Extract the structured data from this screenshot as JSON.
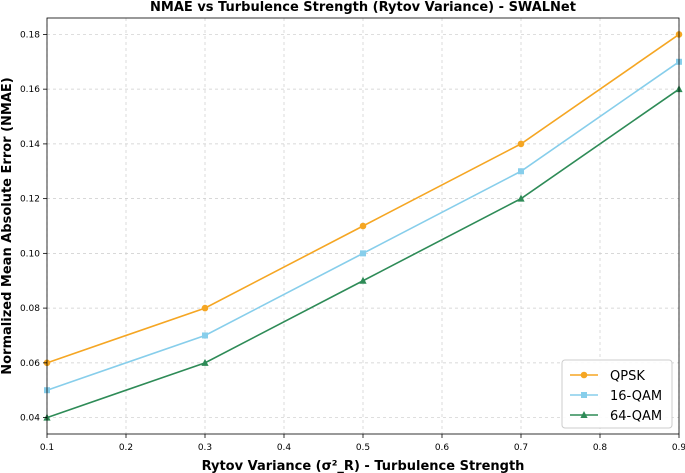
{
  "chart_data": {
    "type": "line",
    "title": "NMAE vs Turbulence Strength (Rytov Variance) - SWALNet",
    "xlabel": "Rytov Variance (σ²_R) - Turbulence Strength",
    "ylabel": "Normalized Mean Absolute Error (NMAE)",
    "xlim": [
      0.1,
      0.9
    ],
    "ylim": [
      0.034,
      0.186
    ],
    "xticks": [
      0.1,
      0.2,
      0.3,
      0.4,
      0.5,
      0.6,
      0.7,
      0.8,
      0.9
    ],
    "xtick_labels": [
      "0.1",
      "0.2",
      "0.3",
      "0.4",
      "0.5",
      "0.6",
      "0.7",
      "0.8",
      "0.9"
    ],
    "yticks": [
      0.04,
      0.06,
      0.08,
      0.1,
      0.12,
      0.14,
      0.16,
      0.18
    ],
    "ytick_labels": [
      "0.04",
      "0.06",
      "0.08",
      "0.10",
      "0.12",
      "0.14",
      "0.16",
      "0.18"
    ],
    "grid": true,
    "legend_position": "bottom-right",
    "x": [
      0.1,
      0.3,
      0.5,
      0.7,
      0.9
    ],
    "series": [
      {
        "name": "QPSK",
        "color": "#f5a623",
        "marker": "circle",
        "values": [
          0.06,
          0.08,
          0.11,
          0.14,
          0.18
        ]
      },
      {
        "name": "16-QAM",
        "color": "#87ceeb",
        "marker": "square",
        "values": [
          0.05,
          0.07,
          0.1,
          0.13,
          0.17
        ]
      },
      {
        "name": "64-QAM",
        "color": "#2e8b57",
        "marker": "triangle",
        "values": [
          0.04,
          0.06,
          0.09,
          0.12,
          0.16
        ]
      }
    ]
  }
}
